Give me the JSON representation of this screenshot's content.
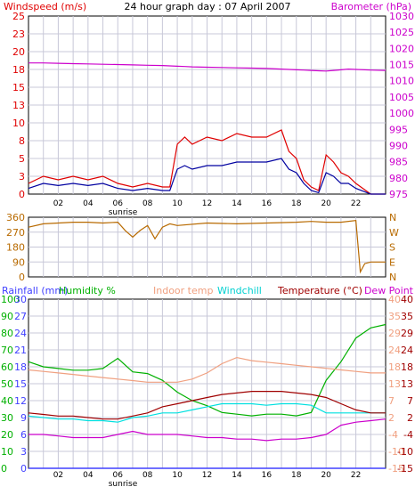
{
  "title": "24 hour graph day : 07 April 2007",
  "colors": {
    "wind": "#e00000",
    "gust": "#e00000",
    "avg_wind": "#0000a0",
    "barometer": "#cc00cc",
    "direction": "#b86a00",
    "rainfall": "#4040ff",
    "humidity": "#00b000",
    "indoor": "#f0a080",
    "windchill": "#00e0e0",
    "temperature": "#a00000",
    "dewpoint": "#cc00cc",
    "grid": "#c8c8d8",
    "axis": "#000000"
  },
  "x_ticks": [
    "02",
    "04",
    "06",
    "08",
    "10",
    "12",
    "14",
    "16",
    "18",
    "20",
    "22"
  ],
  "sunrise_label": "sunrise",
  "chart_data": [
    {
      "type": "line",
      "title": "24 hour graph day : 07 April 2007",
      "ylabel": "Windspeed (m/s)",
      "ylabel_right": "Barometer (hPa)",
      "ylim": [
        0,
        25
      ],
      "ylim_right": [
        975,
        1030
      ],
      "y_ticks": [
        "0",
        "3",
        "5",
        "8",
        "10",
        "13",
        "15",
        "18",
        "20",
        "23",
        "25"
      ],
      "y_ticks_right": [
        "975",
        "980",
        "985",
        "990",
        "995",
        "1000",
        "1005",
        "1010",
        "1015",
        "1020",
        "1025",
        "1030"
      ],
      "x": [
        0,
        1,
        2,
        3,
        4,
        5,
        6,
        7,
        8,
        9,
        9.5,
        10,
        10.5,
        11,
        12,
        13,
        14,
        15,
        16,
        17,
        17.5,
        18,
        18.5,
        19,
        19.5,
        20,
        20.5,
        21,
        21.5,
        22,
        23,
        24
      ],
      "series": [
        {
          "name": "Windspeed",
          "axis": "left",
          "values": [
            1.5,
            2.5,
            2,
            2.5,
            2,
            2.5,
            1.5,
            1,
            1.5,
            1,
            1,
            7,
            8,
            7,
            8,
            7.5,
            8.5,
            8,
            8,
            9,
            6,
            5,
            2,
            1,
            0.5,
            5.5,
            4.5,
            3,
            2.5,
            1.5,
            0,
            0
          ]
        },
        {
          "name": "Average wind",
          "axis": "left",
          "values": [
            0.8,
            1.5,
            1.2,
            1.5,
            1.2,
            1.5,
            0.8,
            0.5,
            0.8,
            0.5,
            0.5,
            3.5,
            4,
            3.5,
            4,
            4,
            4.5,
            4.5,
            4.5,
            5,
            3.5,
            3,
            1.5,
            0.5,
            0.2,
            3,
            2.5,
            1.5,
            1.5,
            0.8,
            0,
            0
          ]
        },
        {
          "name": "Barometer",
          "axis": "right",
          "values": [
            1015.5,
            1015.5,
            1015.4,
            1015.3,
            1015.2,
            1015.1,
            1015,
            1014.9,
            1014.8,
            1014.7,
            1014.6,
            1014.5,
            1014.4,
            1014.3,
            1014.2,
            1014.1,
            1014,
            1013.9,
            1013.8,
            1013.6,
            1013.5,
            1013.4,
            1013.3,
            1013.2,
            1013.1,
            1013,
            1013.2,
            1013.4,
            1013.6,
            1013.5,
            1013.3,
            1013.2
          ]
        }
      ]
    },
    {
      "type": "line",
      "ylabel": "",
      "ylim": [
        0,
        360
      ],
      "y_ticks": [
        "0",
        "90",
        "180",
        "270",
        "360"
      ],
      "y_ticks_right": [
        "N",
        "E",
        "S",
        "W",
        "N"
      ],
      "x": [
        0,
        1,
        2,
        3,
        4,
        5,
        6,
        6.5,
        7,
        7.5,
        8,
        8.5,
        9,
        9.5,
        10,
        12,
        14,
        16,
        18,
        19,
        20,
        21,
        22,
        22.3,
        22.6,
        23,
        23.5,
        24
      ],
      "series": [
        {
          "name": "Wind direction",
          "values": [
            300,
            320,
            325,
            330,
            330,
            325,
            330,
            280,
            240,
            280,
            310,
            230,
            300,
            320,
            310,
            325,
            320,
            325,
            330,
            335,
            330,
            330,
            340,
            30,
            80,
            90,
            90,
            90
          ]
        }
      ]
    },
    {
      "type": "line",
      "ylabel": "",
      "legend": [
        "Rainfall (mm)",
        "Humidity %",
        "Indoor temp",
        "Windchill",
        "Temperature (°C)",
        "Dew Point"
      ],
      "axes": {
        "rainfall": {
          "ylim": [
            0,
            30
          ],
          "ticks": [
            "0",
            "3",
            "6",
            "9",
            "12",
            "15",
            "18",
            "21",
            "24",
            "27",
            "30"
          ]
        },
        "humidity": {
          "ylim": [
            0,
            100
          ],
          "ticks": [
            "0",
            "10",
            "20",
            "30",
            "40",
            "50",
            "60",
            "70",
            "80",
            "90",
            "100"
          ]
        },
        "temp_f": {
          "ylim": [
            -15,
            40
          ],
          "ticks": [
            "-15",
            "-10",
            "-4",
            "2",
            "7",
            "13",
            "18",
            "24",
            "29",
            "35",
            "40"
          ]
        },
        "temp_c": {
          "ylim": [
            -15,
            40
          ],
          "ticks": [
            "-15",
            "-10",
            "-4",
            "2",
            "7",
            "13",
            "18",
            "24",
            "29",
            "35",
            "40"
          ]
        }
      },
      "x": [
        0,
        1,
        2,
        3,
        4,
        5,
        6,
        7,
        8,
        9,
        10,
        11,
        12,
        13,
        14,
        15,
        16,
        17,
        18,
        19,
        20,
        21,
        22,
        23,
        24
      ],
      "series": [
        {
          "name": "Humidity",
          "axis": "humidity",
          "values": [
            63,
            60,
            59,
            58,
            58,
            59,
            65,
            57,
            56,
            52,
            45,
            40,
            37,
            33,
            32,
            31,
            32,
            32,
            31,
            33,
            52,
            63,
            77,
            83,
            85
          ]
        },
        {
          "name": "Indoor temp",
          "axis": "temp_c",
          "values": [
            17,
            16.5,
            16,
            15.5,
            15,
            14.5,
            14,
            13.5,
            13,
            13,
            13,
            14,
            16,
            19,
            21,
            20,
            19.5,
            19,
            18.5,
            18,
            17.5,
            17,
            16.5,
            16,
            16
          ]
        },
        {
          "name": "Windchill",
          "axis": "temp_c",
          "values": [
            2,
            1.5,
            1,
            1,
            0.5,
            0.5,
            0,
            1.5,
            2,
            3,
            3,
            4,
            5,
            6,
            6,
            6,
            5.5,
            6,
            6,
            5.5,
            3,
            3,
            3,
            3,
            3
          ]
        },
        {
          "name": "Temperature",
          "axis": "temp_c",
          "values": [
            3,
            2.5,
            2,
            2,
            1.5,
            1,
            1,
            2,
            3,
            5,
            6,
            7,
            8,
            9,
            9.5,
            10,
            10,
            10,
            9.5,
            9,
            8,
            6,
            4,
            3,
            3
          ]
        },
        {
          "name": "Dew Point",
          "axis": "temp_c",
          "values": [
            -4,
            -4,
            -4.5,
            -5,
            -5,
            -5,
            -4,
            -3,
            -4,
            -4,
            -4,
            -4.5,
            -5,
            -5,
            -5.5,
            -5.5,
            -6,
            -5.5,
            -5.5,
            -5,
            -4,
            -1,
            0,
            0.5,
            1
          ]
        },
        {
          "name": "Rainfall",
          "axis": "rainfall",
          "values": [
            0,
            0,
            0,
            0,
            0,
            0,
            0,
            0,
            0,
            0,
            0,
            0,
            0,
            0,
            0,
            0,
            0,
            0,
            0,
            0,
            0,
            0,
            0,
            0,
            0
          ]
        }
      ]
    }
  ]
}
